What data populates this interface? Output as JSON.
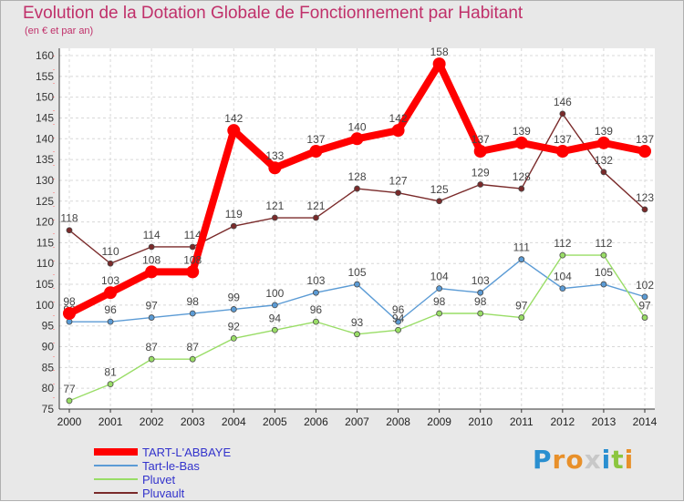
{
  "title": "Evolution de la Dotation Globale de Fonctionnement par Habitant",
  "subtitle": "(en € et par an)",
  "logo": {
    "text": "Proxiti",
    "letters": [
      {
        "ch": "P",
        "color": "#2a8fd0"
      },
      {
        "ch": "r",
        "color": "#e8902a"
      },
      {
        "ch": "o",
        "color": "#e8902a"
      },
      {
        "ch": "x",
        "color": "#c8c8c8"
      },
      {
        "ch": "i",
        "color": "#2a8fd0"
      },
      {
        "ch": "t",
        "color": "#8cc63f"
      },
      {
        "ch": "i",
        "color": "#e8902a"
      }
    ]
  },
  "chart_data": {
    "type": "line",
    "x": [
      2000,
      2001,
      2002,
      2003,
      2004,
      2005,
      2006,
      2007,
      2008,
      2009,
      2010,
      2011,
      2012,
      2013,
      2014
    ],
    "ylim": [
      75,
      160
    ],
    "yticks": [
      75,
      80,
      85,
      90,
      95,
      100,
      105,
      110,
      115,
      120,
      125,
      130,
      135,
      140,
      145,
      150,
      155,
      160
    ],
    "grid": true,
    "legend_position": "bottom-left",
    "series": [
      {
        "name": "TART-L'ABBAYE",
        "color": "#ff0000",
        "values": [
          98,
          103,
          108,
          108,
          142,
          133,
          137,
          140,
          142,
          158,
          137,
          139,
          137,
          139,
          137
        ],
        "labels": [
          "98",
          "103",
          "108",
          "108",
          "142",
          "133",
          "137",
          "140",
          "142",
          "158",
          "137",
          "139",
          "137",
          "139",
          "137"
        ]
      },
      {
        "name": "Tart-le-Bas",
        "color": "#5b9bd5",
        "values": [
          96,
          96,
          97,
          98,
          99,
          100,
          103,
          105,
          96,
          104,
          103,
          111,
          104,
          105,
          102
        ],
        "labels": [
          "96",
          "96",
          "97",
          "98",
          "99",
          "100",
          "103",
          "105",
          "96",
          "104",
          "103",
          "111",
          "104",
          "105",
          "102"
        ]
      },
      {
        "name": "Pluvet",
        "color": "#99dd66",
        "values": [
          77,
          81,
          87,
          87,
          92,
          94,
          96,
          93,
          94,
          98,
          98,
          97,
          112,
          112,
          97
        ],
        "labels": [
          "77",
          "81",
          "87",
          "87",
          "92",
          "94",
          "96",
          "93",
          "94",
          "98",
          "98",
          "97",
          "112",
          "112",
          "97"
        ]
      },
      {
        "name": "Pluvault",
        "color": "#7a2a2a",
        "values": [
          118,
          110,
          114,
          114,
          119,
          121,
          121,
          128,
          127,
          125,
          129,
          128,
          146,
          132,
          123
        ],
        "labels": [
          "118",
          "110",
          "114",
          "114",
          "119",
          "121",
          "121",
          "128",
          "127",
          "125",
          "129",
          "128",
          "146",
          "132",
          "123"
        ]
      }
    ]
  }
}
